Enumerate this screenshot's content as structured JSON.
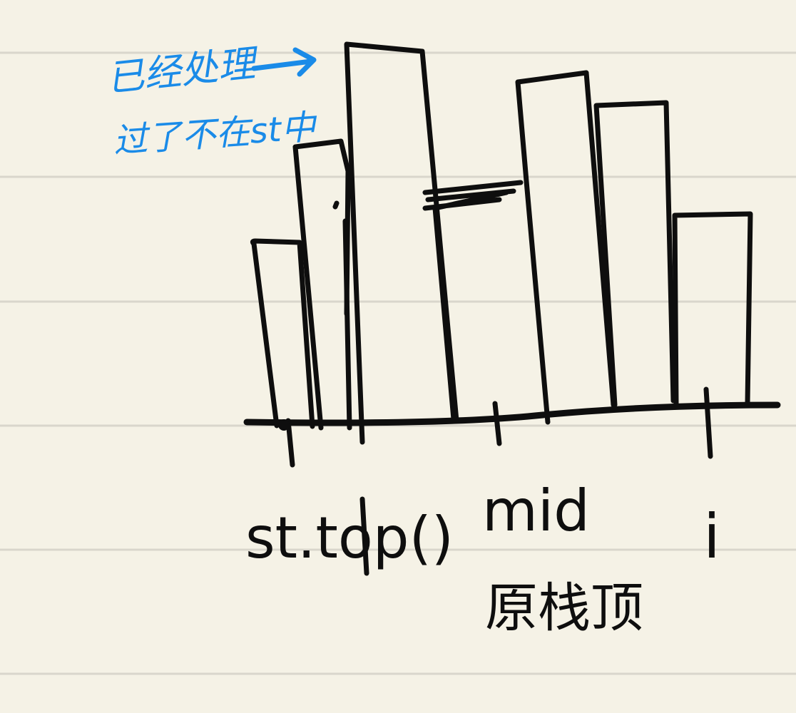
{
  "note_annotation": {
    "line1": "已经处理",
    "line2": "过了不在st中",
    "color": "#1a8be8"
  },
  "labels": {
    "left_marker": "st.top()",
    "mid_marker": "mid",
    "mid_note": "原栈顶",
    "right_marker": "i"
  },
  "colors": {
    "paper": "#f5f2e6",
    "rule_line": "#d9d6cc",
    "ink": "#0e0e0e"
  }
}
